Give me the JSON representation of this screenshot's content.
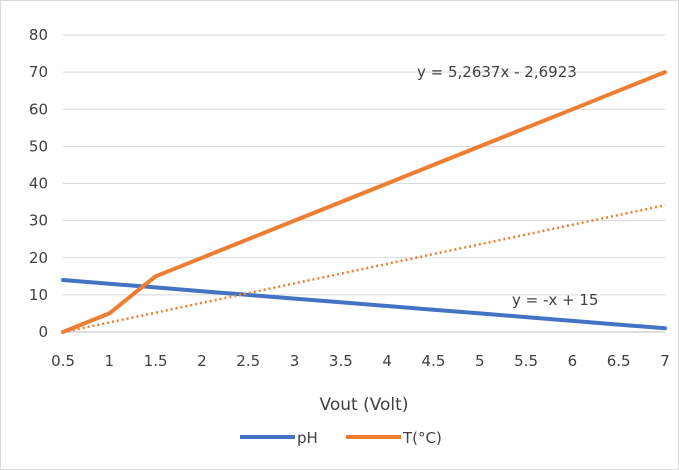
{
  "chart_data": {
    "type": "line",
    "title": "",
    "xlabel": "Vout (Volt)",
    "ylabel": "",
    "categories": [
      "0.5",
      "1",
      "1.5",
      "2",
      "2.5",
      "3",
      "3.5",
      "4",
      "4.5",
      "5",
      "5.5",
      "6",
      "6.5",
      "7"
    ],
    "x": [
      0.5,
      1,
      1.5,
      2,
      2.5,
      3,
      3.5,
      4,
      4.5,
      5,
      5.5,
      6,
      6.5,
      7
    ],
    "ylim": [
      0,
      80
    ],
    "yticks": [
      "0",
      "10",
      "20",
      "30",
      "40",
      "50",
      "60",
      "70",
      "80"
    ],
    "grid": true,
    "legend_position": "bottom",
    "series": [
      {
        "name": "pH",
        "color": "#4472c4",
        "values": [
          14,
          13,
          12,
          11,
          10,
          9,
          8,
          7,
          6,
          5,
          4,
          3,
          2,
          1
        ]
      },
      {
        "name": "T(°C)",
        "color": "#ed7d31",
        "values": [
          0,
          5,
          15,
          20,
          25,
          30,
          35,
          40,
          45,
          50,
          55,
          60,
          65,
          70
        ]
      }
    ],
    "trendline": {
      "series": "T(°C)",
      "style": "dotted",
      "color": "#ed7d31",
      "slope": 5.2637,
      "intercept": -2.6923
    },
    "annotations": [
      {
        "text": "y = 5,2637x - 2,6923",
        "near": "upper-right"
      },
      {
        "text": "y = -x + 15",
        "near": "lower-right"
      }
    ]
  }
}
